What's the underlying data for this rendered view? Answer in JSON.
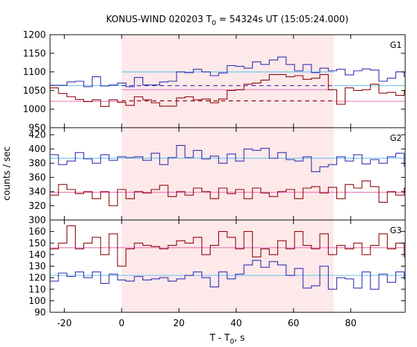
{
  "chart_data": {
    "type": "line",
    "title_main": "KONUS-WIND 020203 T",
    "title_sub": "0",
    "title_rest": " = 54324s UT (15:05:24.000)",
    "xlabel_main": "T - T",
    "xlabel_sub": "0",
    "xlabel_rest": ", s",
    "ylabel": "counts / sec",
    "xlim": [
      -25,
      99
    ],
    "x_ticks": [
      -20,
      0,
      20,
      40,
      60,
      80
    ],
    "shaded_interval": [
      0,
      74
    ],
    "bin_start": -25,
    "bin_width": 2.944,
    "colors": {
      "blue": "#2a2ab0",
      "red": "#8b0000",
      "cyan_fit": "#6ec6ec",
      "pink_fit": "#e87ab8",
      "shade": "#fde8ea"
    },
    "panels": [
      {
        "name": "G1",
        "ylim": [
          950,
          1200
        ],
        "y_ticks": [
          950,
          1000,
          1050,
          1100,
          1150,
          1200
        ],
        "series": [
          {
            "color": "blue",
            "values": [
              1064,
              1064,
              1073,
              1075,
              1060,
              1087,
              1062,
              1065,
              1070,
              1060,
              1085,
              1065,
              1065,
              1073,
              1075,
              1100,
              1098,
              1107,
              1100,
              1090,
              1097,
              1117,
              1115,
              1110,
              1127,
              1120,
              1132,
              1140,
              1120,
              1103,
              1120,
              1098,
              1110,
              1103,
              1107,
              1092,
              1103,
              1108,
              1105,
              1075,
              1083,
              1100,
              1088,
              1083,
              1096,
              1092,
              1080,
              1067,
              1063,
              1075,
              1062,
              1062,
              1065,
              1070,
              1063,
              1075,
              1065,
              1068,
              1073,
              1068,
              1075,
              1065
            ]
          },
          {
            "color": "red",
            "values": [
              1057,
              1042,
              1033,
              1026,
              1020,
              1025,
              1007,
              1025,
              1018,
              1010,
              1033,
              1025,
              1017,
              1008,
              1008,
              1030,
              1033,
              1025,
              1027,
              1017,
              1027,
              1050,
              1052,
              1067,
              1070,
              1078,
              1093,
              1093,
              1087,
              1090,
              1080,
              1083,
              1093,
              1052,
              1013,
              1057,
              1050,
              1052,
              1067,
              1043,
              1045,
              1037,
              1050,
              1060,
              1040,
              1010,
              1017,
              1035,
              1018,
              1030,
              1007,
              1037,
              1033,
              1032,
              1020,
              1017,
              1007,
              1030,
              1035,
              1035,
              1035,
              1015,
              1018,
              1017
            ]
          }
        ],
        "fits": [
          {
            "color": "cyan_fit",
            "y": 1063,
            "range": [
              -25,
              0
            ]
          },
          {
            "color": "cyan_fit",
            "y": 1100,
            "range": [
              0,
              74
            ]
          },
          {
            "color": "cyan_fit",
            "y": 1063,
            "range": [
              74,
              99
            ]
          },
          {
            "color": "pink_fit",
            "y": 1021,
            "range": [
              -25,
              0
            ]
          },
          {
            "color": "pink_fit",
            "y": 1052,
            "range": [
              0,
              74
            ]
          },
          {
            "color": "pink_fit",
            "y": 1021,
            "range": [
              74,
              99
            ]
          }
        ],
        "dashed": [
          {
            "color": "blue",
            "y": 1063,
            "range": [
              0,
              74
            ]
          },
          {
            "color": "red",
            "y": 1022,
            "range": [
              0,
              74
            ]
          }
        ]
      },
      {
        "name": "G2",
        "ylim": [
          300,
          430
        ],
        "y_ticks": [
          300,
          320,
          340,
          360,
          380,
          400,
          420
        ],
        "series": [
          {
            "color": "blue",
            "values": [
              392,
              378,
              383,
              395,
              386,
              380,
              392,
              384,
              389,
              388,
              389,
              384,
              394,
              378,
              388,
              405,
              388,
              398,
              386,
              390,
              380,
              393,
              383,
              400,
              398,
              401,
              387,
              395,
              385,
              383,
              389,
              368,
              375,
              378,
              389,
              383,
              392,
              379,
              385,
              380,
              389,
              394,
              376,
              388,
              363,
              376,
              385,
              376,
              390,
              393,
              396,
              383,
              375,
              384,
              390,
              378,
              398,
              384,
              379,
              388,
              403,
              393
            ]
          },
          {
            "color": "red",
            "values": [
              335,
              350,
              343,
              337,
              340,
              330,
              340,
              320,
              343,
              330,
              340,
              338,
              343,
              349,
              333,
              340,
              335,
              345,
              340,
              330,
              345,
              337,
              343,
              330,
              345,
              338,
              333,
              340,
              343,
              330,
              345,
              347,
              338,
              346,
              330,
              350,
              345,
              355,
              347,
              325,
              340,
              335,
              345,
              340,
              325,
              340,
              347,
              340,
              350,
              353,
              340,
              363,
              348,
              342,
              340,
              335,
              340,
              338,
              345,
              355,
              340,
              360,
              345
            ]
          }
        ],
        "fits": [
          {
            "color": "cyan_fit",
            "y": 387,
            "range": [
              -25,
              99
            ]
          },
          {
            "color": "pink_fit",
            "y": 339,
            "range": [
              -25,
              99
            ]
          }
        ],
        "dashed": []
      },
      {
        "name": "G3",
        "ylim": [
          90,
          170
        ],
        "y_ticks": [
          90,
          100,
          110,
          120,
          130,
          140,
          150,
          160
        ],
        "series": [
          {
            "color": "blue",
            "values": [
              117,
              124,
              121,
              125,
              120,
              125,
              115,
              123,
              118,
              117,
              121,
              118,
              119,
              120,
              117,
              119,
              122,
              125,
              120,
              112,
              125,
              119,
              123,
              131,
              135,
              129,
              134,
              131,
              122,
              128,
              111,
              113,
              130,
              110,
              120,
              119,
              111,
              125,
              110,
              123,
              116,
              125,
              119,
              120,
              118,
              117,
              118,
              121,
              119,
              128,
              126,
              119,
              120,
              130,
              124,
              124,
              110,
              100,
              117,
              122,
              118,
              121
            ]
          },
          {
            "color": "red",
            "values": [
              145,
              150,
              165,
              145,
              150,
              155,
              140,
              158,
              130,
              145,
              150,
              148,
              147,
              145,
              148,
              152,
              150,
              155,
              140,
              148,
              160,
              155,
              145,
              160,
              138,
              145,
              140,
              152,
              145,
              160,
              148,
              145,
              158,
              140,
              148,
              145,
              150,
              140,
              148,
              158,
              145,
              150,
              138,
              148,
              132,
              155,
              135,
              142,
              130,
              145,
              160,
              140,
              150,
              157,
              150,
              148,
              148,
              140,
              150,
              156,
              125,
              150,
              145,
              147,
              153,
              150
            ]
          }
        ],
        "fits": [
          {
            "color": "cyan_fit",
            "y": 122,
            "range": [
              -25,
              99
            ]
          },
          {
            "color": "pink_fit",
            "y": 146,
            "range": [
              -25,
              99
            ]
          }
        ],
        "dashed": []
      }
    ]
  }
}
